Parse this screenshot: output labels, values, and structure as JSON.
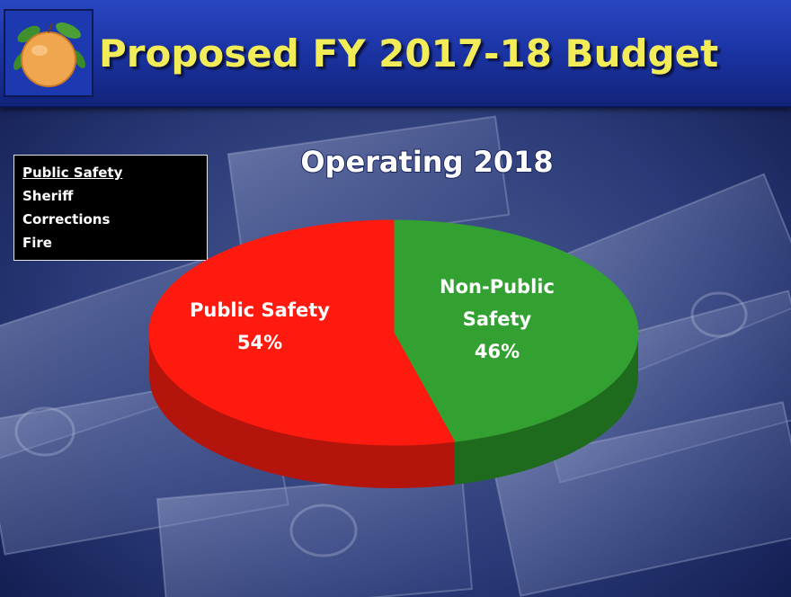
{
  "slide": {
    "title": "Proposed FY 2017-18 Budget"
  },
  "legend_box": {
    "heading": "Public Safety",
    "items": [
      "Sheriff",
      "Corrections",
      "Fire"
    ]
  },
  "icons": {
    "logo": "orange-fruit-icon"
  },
  "chart_data": {
    "type": "pie",
    "title": "Operating 2018",
    "slices": [
      {
        "label": "Public Safety",
        "value": 54,
        "percent_label": "54%",
        "color": "#ff1a0f",
        "side_color": "#b3150c"
      },
      {
        "label": "Non-Public Safety",
        "value": 46,
        "percent_label": "46%",
        "color": "#33a032",
        "side_color": "#1f6b1e"
      }
    ],
    "style": "3d-tilted"
  },
  "colors": {
    "title_yellow": "#f2ec58",
    "header_blue": "#1c35a6"
  }
}
